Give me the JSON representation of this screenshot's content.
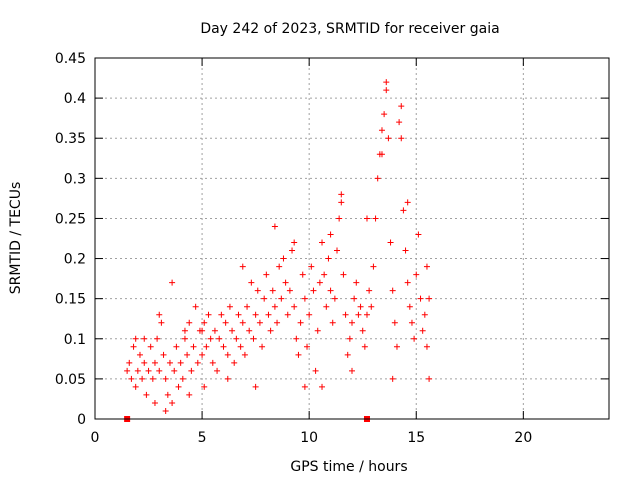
{
  "chart_data": {
    "type": "scatter",
    "title": "Day 242 of 2023, SRMTID for receiver gaia",
    "xlabel": "GPS time / hours",
    "ylabel": "SRMTID / TECUs",
    "xlim": [
      0,
      24
    ],
    "ylim": [
      0,
      0.45
    ],
    "x_ticks": [
      0,
      5,
      10,
      15,
      20
    ],
    "x_tick_labels": [
      "0",
      "5",
      "10",
      "15",
      "20"
    ],
    "y_ticks": [
      0,
      0.05,
      0.1,
      0.15,
      0.2,
      0.25,
      0.3,
      0.35,
      0.4,
      0.45
    ],
    "y_tick_labels": [
      "0",
      "0.05",
      "0.1",
      "0.15",
      "0.2",
      "0.25",
      "0.3",
      "0.35",
      "0.4",
      "0.45"
    ],
    "grid": true,
    "marker": "+",
    "color": "#ff0000",
    "series": [
      {
        "name": "SRMTID",
        "points": [
          [
            1.5,
            0.06
          ],
          [
            1.6,
            0.07
          ],
          [
            1.7,
            0.05
          ],
          [
            1.8,
            0.09
          ],
          [
            1.9,
            0.04
          ],
          [
            2.0,
            0.06
          ],
          [
            2.1,
            0.08
          ],
          [
            2.2,
            0.05
          ],
          [
            2.3,
            0.07
          ],
          [
            2.4,
            0.03
          ],
          [
            2.5,
            0.06
          ],
          [
            2.6,
            0.09
          ],
          [
            2.7,
            0.05
          ],
          [
            2.8,
            0.07
          ],
          [
            2.9,
            0.1
          ],
          [
            3.0,
            0.06
          ],
          [
            3.1,
            0.12
          ],
          [
            3.2,
            0.08
          ],
          [
            3.3,
            0.05
          ],
          [
            3.4,
            0.03
          ],
          [
            3.5,
            0.07
          ],
          [
            3.6,
            0.02
          ],
          [
            3.7,
            0.06
          ],
          [
            3.8,
            0.09
          ],
          [
            3.9,
            0.04
          ],
          [
            4.0,
            0.07
          ],
          [
            4.1,
            0.05
          ],
          [
            4.2,
            0.1
          ],
          [
            4.3,
            0.08
          ],
          [
            4.4,
            0.12
          ],
          [
            4.5,
            0.06
          ],
          [
            4.6,
            0.09
          ],
          [
            4.7,
            0.14
          ],
          [
            4.8,
            0.07
          ],
          [
            4.9,
            0.11
          ],
          [
            5.0,
            0.08
          ],
          [
            5.1,
            0.12
          ],
          [
            5.2,
            0.09
          ],
          [
            5.3,
            0.13
          ],
          [
            5.4,
            0.1
          ],
          [
            5.5,
            0.07
          ],
          [
            5.6,
            0.11
          ],
          [
            5.7,
            0.06
          ],
          [
            5.8,
            0.1
          ],
          [
            5.9,
            0.13
          ],
          [
            6.0,
            0.09
          ],
          [
            6.1,
            0.12
          ],
          [
            6.2,
            0.08
          ],
          [
            6.3,
            0.14
          ],
          [
            6.4,
            0.11
          ],
          [
            6.5,
            0.07
          ],
          [
            6.6,
            0.1
          ],
          [
            6.7,
            0.13
          ],
          [
            6.8,
            0.09
          ],
          [
            6.9,
            0.12
          ],
          [
            7.0,
            0.08
          ],
          [
            7.1,
            0.14
          ],
          [
            7.2,
            0.11
          ],
          [
            7.3,
            0.17
          ],
          [
            7.4,
            0.1
          ],
          [
            7.5,
            0.13
          ],
          [
            7.6,
            0.16
          ],
          [
            7.7,
            0.12
          ],
          [
            7.8,
            0.09
          ],
          [
            7.9,
            0.15
          ],
          [
            8.0,
            0.18
          ],
          [
            8.1,
            0.13
          ],
          [
            8.2,
            0.11
          ],
          [
            8.3,
            0.16
          ],
          [
            8.4,
            0.14
          ],
          [
            8.5,
            0.12
          ],
          [
            8.6,
            0.19
          ],
          [
            8.7,
            0.15
          ],
          [
            8.8,
            0.2
          ],
          [
            8.9,
            0.17
          ],
          [
            9.0,
            0.13
          ],
          [
            9.1,
            0.16
          ],
          [
            9.2,
            0.21
          ],
          [
            9.3,
            0.14
          ],
          [
            9.4,
            0.1
          ],
          [
            9.5,
            0.08
          ],
          [
            9.6,
            0.12
          ],
          [
            9.7,
            0.18
          ],
          [
            9.8,
            0.15
          ],
          [
            9.9,
            0.09
          ],
          [
            10.0,
            0.13
          ],
          [
            10.1,
            0.19
          ],
          [
            10.2,
            0.16
          ],
          [
            10.3,
            0.06
          ],
          [
            10.4,
            0.11
          ],
          [
            10.5,
            0.17
          ],
          [
            10.6,
            0.22
          ],
          [
            10.7,
            0.18
          ],
          [
            10.8,
            0.14
          ],
          [
            10.9,
            0.2
          ],
          [
            11.0,
            0.16
          ],
          [
            11.1,
            0.12
          ],
          [
            11.2,
            0.15
          ],
          [
            11.3,
            0.21
          ],
          [
            11.4,
            0.25
          ],
          [
            11.5,
            0.27
          ],
          [
            11.6,
            0.18
          ],
          [
            11.7,
            0.13
          ],
          [
            11.8,
            0.08
          ],
          [
            11.9,
            0.1
          ],
          [
            12.0,
            0.12
          ],
          [
            12.1,
            0.15
          ],
          [
            12.2,
            0.17
          ],
          [
            12.3,
            0.13
          ],
          [
            12.4,
            0.14
          ],
          [
            12.5,
            0.11
          ],
          [
            12.6,
            0.09
          ],
          [
            12.7,
            0.13
          ],
          [
            12.8,
            0.16
          ],
          [
            12.9,
            0.14
          ],
          [
            13.0,
            0.19
          ],
          [
            13.1,
            0.25
          ],
          [
            13.2,
            0.3
          ],
          [
            13.3,
            0.33
          ],
          [
            13.4,
            0.36
          ],
          [
            13.5,
            0.38
          ],
          [
            13.6,
            0.41
          ],
          [
            13.7,
            0.35
          ],
          [
            13.8,
            0.22
          ],
          [
            13.9,
            0.16
          ],
          [
            14.0,
            0.12
          ],
          [
            14.1,
            0.09
          ],
          [
            14.2,
            0.37
          ],
          [
            14.3,
            0.35
          ],
          [
            14.4,
            0.26
          ],
          [
            14.5,
            0.21
          ],
          [
            14.6,
            0.17
          ],
          [
            14.7,
            0.14
          ],
          [
            14.8,
            0.12
          ],
          [
            14.9,
            0.1
          ],
          [
            15.0,
            0.18
          ],
          [
            15.1,
            0.23
          ],
          [
            15.2,
            0.15
          ],
          [
            15.3,
            0.11
          ],
          [
            15.4,
            0.13
          ],
          [
            15.5,
            0.09
          ],
          [
            15.6,
            0.15
          ],
          [
            14.3,
            0.39
          ],
          [
            13.6,
            0.42
          ],
          [
            13.4,
            0.33
          ],
          [
            11.5,
            0.28
          ],
          [
            3.6,
            0.17
          ],
          [
            6.9,
            0.19
          ],
          [
            8.4,
            0.24
          ],
          [
            9.3,
            0.22
          ],
          [
            2.8,
            0.02
          ],
          [
            3.3,
            0.01
          ],
          [
            4.4,
            0.03
          ],
          [
            5.1,
            0.04
          ],
          [
            6.2,
            0.05
          ],
          [
            7.5,
            0.04
          ],
          [
            9.8,
            0.04
          ],
          [
            10.6,
            0.04
          ],
          [
            12.0,
            0.06
          ],
          [
            13.9,
            0.05
          ],
          [
            15.6,
            0.05
          ],
          [
            12.7,
            0.25
          ],
          [
            11.0,
            0.23
          ],
          [
            14.6,
            0.27
          ],
          [
            15.5,
            0.19
          ],
          [
            1.9,
            0.1
          ],
          [
            2.3,
            0.1
          ],
          [
            3.0,
            0.13
          ],
          [
            4.2,
            0.11
          ],
          [
            5.0,
            0.11
          ]
        ]
      }
    ],
    "annotations": [
      {
        "type": "square-marker",
        "x": 1.5,
        "y": 0
      },
      {
        "type": "square-marker",
        "x": 12.7,
        "y": 0
      }
    ]
  }
}
